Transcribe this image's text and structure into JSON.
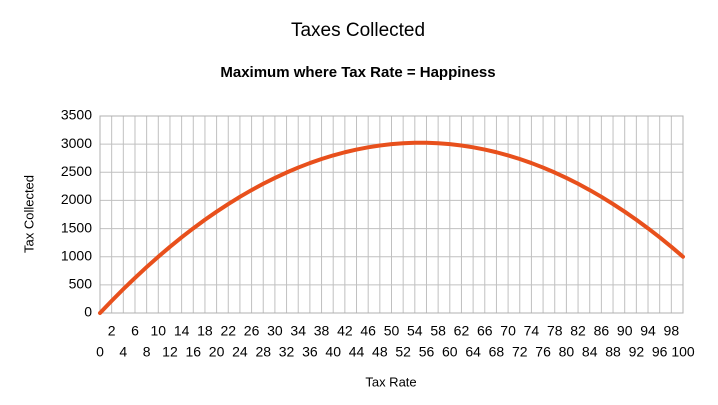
{
  "chart_data": {
    "type": "line",
    "title": "Taxes Collected",
    "subtitle": "Maximum where Tax Rate = Happiness",
    "x_label": "Tax Rate",
    "y_label": "Tax Collected",
    "x": [
      0,
      2,
      4,
      6,
      8,
      10,
      12,
      14,
      16,
      18,
      20,
      22,
      24,
      26,
      28,
      30,
      32,
      34,
      36,
      38,
      40,
      42,
      44,
      46,
      48,
      50,
      52,
      54,
      56,
      58,
      60,
      62,
      64,
      66,
      68,
      70,
      72,
      74,
      76,
      78,
      80,
      82,
      84,
      86,
      88,
      90,
      92,
      94,
      96,
      98,
      100
    ],
    "series": [
      {
        "color": "#e8501c",
        "values": [
          0,
          216,
          424,
          624,
          816,
          1000,
          1176,
          1344,
          1504,
          1656,
          1800,
          1936,
          2064,
          2184,
          2296,
          2400,
          2496,
          2584,
          2664,
          2736,
          2800,
          2856,
          2904,
          2944,
          2976,
          3000,
          3016,
          3024,
          3024,
          3016,
          3000,
          2976,
          2944,
          2904,
          2856,
          2800,
          2736,
          2664,
          2584,
          2496,
          2400,
          2296,
          2184,
          2064,
          1936,
          1800,
          1656,
          1504,
          1344,
          1176,
          1000
        ]
      }
    ],
    "xlim": [
      0,
      100
    ],
    "xticks": [
      0,
      2,
      4,
      6,
      8,
      10,
      12,
      14,
      16,
      18,
      20,
      22,
      24,
      26,
      28,
      30,
      32,
      34,
      36,
      38,
      40,
      42,
      44,
      46,
      48,
      50,
      52,
      54,
      56,
      58,
      60,
      62,
      64,
      66,
      68,
      70,
      72,
      74,
      76,
      78,
      80,
      82,
      84,
      86,
      88,
      90,
      92,
      94,
      96,
      98,
      100
    ],
    "ylim": [
      0,
      3500
    ],
    "yticks": [
      0,
      500,
      1000,
      1500,
      2000,
      2500,
      3000,
      3500
    ],
    "grid": true
  }
}
